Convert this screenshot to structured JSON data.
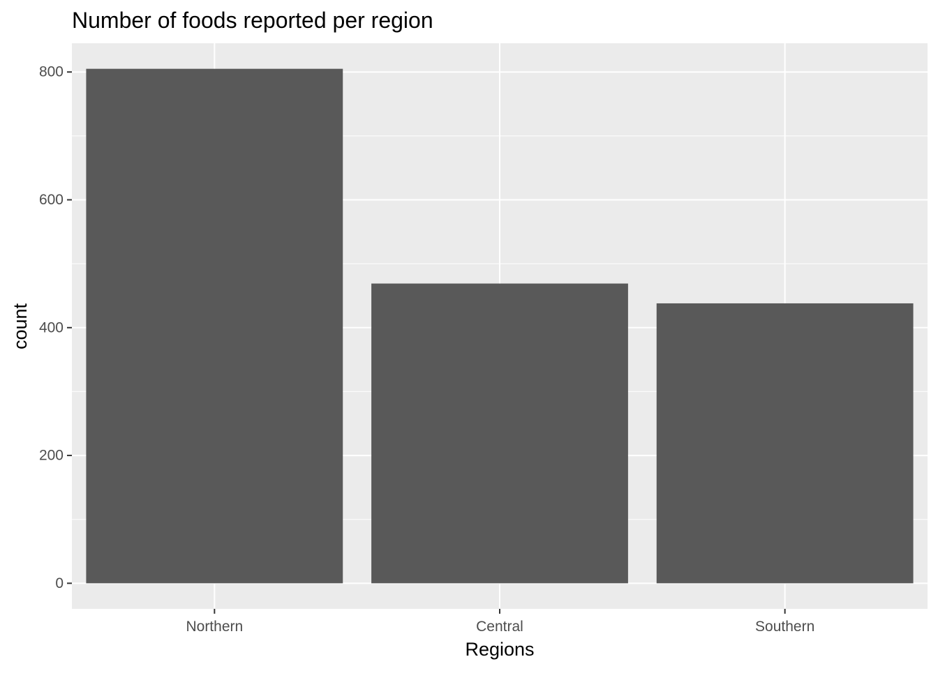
{
  "chart_data": {
    "type": "bar",
    "title": "Number of foods reported per region",
    "xlabel": "Regions",
    "ylabel": "count",
    "categories": [
      "Northern",
      "Central",
      "Southern"
    ],
    "values": [
      805,
      469,
      438
    ],
    "ylim": [
      -40,
      845
    ],
    "yticks": [
      0,
      200,
      400,
      600,
      800
    ],
    "ytick_labels": [
      "0",
      "200",
      "400",
      "600",
      "800"
    ],
    "grid": true,
    "legend": "none",
    "colors": {
      "bar": "#595959",
      "panel_background": "#ebebeb",
      "grid": "#ffffff",
      "tick_mark": "#333333",
      "tick_label": "#4d4d4d"
    }
  }
}
